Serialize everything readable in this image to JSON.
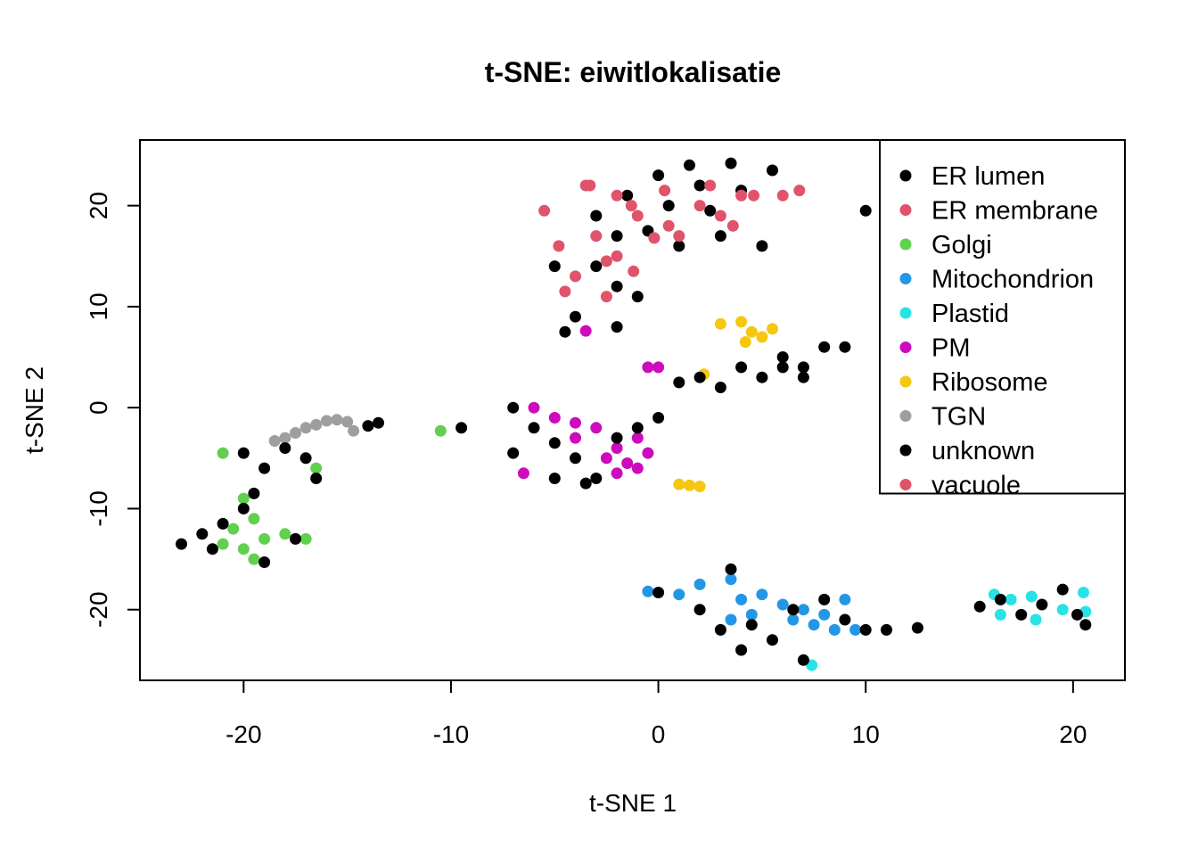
{
  "chart_data": {
    "type": "scatter",
    "title": "t-SNE: eiwitlokalisatie",
    "xlabel": "t-SNE 1",
    "ylabel": "t-SNE 2",
    "xlim": [
      -25,
      22.5
    ],
    "ylim": [
      -27,
      26.5
    ],
    "x_ticks": [
      -20,
      -10,
      0,
      10,
      20
    ],
    "y_ticks": [
      -20,
      -10,
      0,
      10,
      20
    ],
    "grid": false,
    "legend_position": "top-right",
    "legend": [
      {
        "name": "ER lumen",
        "color": "#000000"
      },
      {
        "name": "ER membrane",
        "color": "#DF536B"
      },
      {
        "name": "Golgi",
        "color": "#61D04F"
      },
      {
        "name": "Mitochondrion",
        "color": "#2297E6"
      },
      {
        "name": "Plastid",
        "color": "#28E2E5"
      },
      {
        "name": "PM",
        "color": "#CD0BBC"
      },
      {
        "name": "Ribosome",
        "color": "#F5C710"
      },
      {
        "name": "TGN",
        "color": "#9E9E9E"
      },
      {
        "name": "unknown",
        "color": "#000000"
      },
      {
        "name": "vacuole",
        "color": "#DF536B"
      }
    ],
    "series": [
      {
        "name": "ER lumen",
        "color": "#000000",
        "points": [
          [
            0,
            23
          ],
          [
            1.5,
            24
          ],
          [
            3.5,
            24.2
          ],
          [
            5.5,
            23.5
          ],
          [
            -1.5,
            21
          ],
          [
            2,
            22
          ],
          [
            4,
            21.5
          ],
          [
            -3,
            19
          ],
          [
            0.5,
            20
          ],
          [
            2.5,
            19.5
          ],
          [
            -2,
            17
          ],
          [
            -0.5,
            17.5
          ],
          [
            1,
            16
          ],
          [
            3,
            17
          ],
          [
            5,
            16
          ],
          [
            -5,
            14
          ],
          [
            -3,
            14
          ],
          [
            -2,
            12
          ],
          [
            -1,
            11
          ],
          [
            -4,
            9
          ],
          [
            -2,
            8
          ],
          [
            -4.5,
            7.5
          ],
          [
            6,
            5
          ],
          [
            8,
            6
          ],
          [
            5,
            3
          ],
          [
            7,
            4
          ],
          [
            9,
            6
          ],
          [
            10,
            19.5
          ]
        ]
      },
      {
        "name": "ER membrane",
        "color": "#DF536B",
        "points": [
          [
            -5.5,
            19.5
          ],
          [
            -3.5,
            22
          ],
          [
            -2,
            21
          ],
          [
            -1,
            19
          ],
          [
            0.5,
            18
          ],
          [
            2,
            20
          ],
          [
            4,
            21
          ],
          [
            6,
            21
          ],
          [
            -3,
            17
          ],
          [
            -2,
            15
          ],
          [
            -4,
            13
          ],
          [
            -2.5,
            11
          ],
          [
            1,
            17
          ],
          [
            3,
            19
          ]
        ]
      },
      {
        "name": "Golgi",
        "color": "#61D04F",
        "points": [
          [
            -21,
            -4.5
          ],
          [
            -20,
            -9
          ],
          [
            -19.5,
            -11
          ],
          [
            -20.5,
            -12
          ],
          [
            -19,
            -13
          ],
          [
            -20,
            -14
          ],
          [
            -21,
            -13.5
          ],
          [
            -19.5,
            -15
          ],
          [
            -18,
            -12.5
          ],
          [
            -17,
            -13
          ],
          [
            -16.5,
            -6
          ],
          [
            -10.5,
            -2.3
          ]
        ]
      },
      {
        "name": "Mitochondrion",
        "color": "#2297E6",
        "points": [
          [
            -0.5,
            -18.2
          ],
          [
            1,
            -18.5
          ],
          [
            2,
            -17.5
          ],
          [
            3.5,
            -17
          ],
          [
            4,
            -19
          ],
          [
            5,
            -18.5
          ],
          [
            6,
            -19.5
          ],
          [
            7,
            -20
          ],
          [
            6.5,
            -21
          ],
          [
            8,
            -20.5
          ],
          [
            9,
            -19
          ],
          [
            9.5,
            -22
          ],
          [
            3.5,
            -21
          ],
          [
            4.5,
            -20.5
          ],
          [
            7.5,
            -21.5
          ],
          [
            8.5,
            -22
          ]
        ]
      },
      {
        "name": "Plastid",
        "color": "#28E2E5",
        "points": [
          [
            16.2,
            -18.5
          ],
          [
            17,
            -19
          ],
          [
            18,
            -18.7
          ],
          [
            18.2,
            -21
          ],
          [
            19.5,
            -20
          ],
          [
            20.5,
            -18.3
          ],
          [
            20.6,
            -20.2
          ],
          [
            16.5,
            -20.5
          ],
          [
            7.4,
            -25.5
          ]
        ]
      },
      {
        "name": "PM",
        "color": "#CD0BBC",
        "points": [
          [
            -6,
            0
          ],
          [
            -5,
            -1
          ],
          [
            -4,
            -1.5
          ],
          [
            -3,
            -2
          ],
          [
            -2,
            -4
          ],
          [
            -1,
            -3
          ],
          [
            -2.5,
            -5
          ],
          [
            -1.5,
            -5.5
          ],
          [
            -0.5,
            -4.5
          ],
          [
            -2,
            -6.5
          ],
          [
            -1,
            -6
          ],
          [
            -3.5,
            7.6
          ],
          [
            -0.5,
            4
          ],
          [
            0,
            4
          ],
          [
            -6.5,
            -6.5
          ],
          [
            -4,
            -3
          ]
        ]
      },
      {
        "name": "Ribosome",
        "color": "#F5C710",
        "points": [
          [
            3,
            8.3
          ],
          [
            4,
            8.5
          ],
          [
            4.5,
            7.5
          ],
          [
            5,
            7
          ],
          [
            5.5,
            7.8
          ],
          [
            4.2,
            6.5
          ],
          [
            2.2,
            3.3
          ],
          [
            1,
            -7.6
          ],
          [
            1.5,
            -7.7
          ],
          [
            2,
            -7.8
          ]
        ]
      },
      {
        "name": "TGN",
        "color": "#9E9E9E",
        "points": [
          [
            -18.5,
            -3.3
          ],
          [
            -18,
            -3
          ],
          [
            -17.5,
            -2.5
          ],
          [
            -17,
            -2
          ],
          [
            -16.5,
            -1.7
          ],
          [
            -16,
            -1.3
          ],
          [
            -15.5,
            -1.2
          ],
          [
            -15,
            -1.4
          ],
          [
            -14.7,
            -2.3
          ]
        ]
      },
      {
        "name": "unknown",
        "color": "#000000",
        "points": [
          [
            -23,
            -13.5
          ],
          [
            -22,
            -12.5
          ],
          [
            -21,
            -11.5
          ],
          [
            -20,
            -10
          ],
          [
            -19.5,
            -8.5
          ],
          [
            -19,
            -6
          ],
          [
            -20,
            -4.5
          ],
          [
            -18,
            -4
          ],
          [
            -17,
            -5
          ],
          [
            -16.5,
            -7
          ],
          [
            -17.5,
            -13
          ],
          [
            -19,
            -15.3
          ],
          [
            -21.5,
            -14
          ],
          [
            -14,
            -1.8
          ],
          [
            -13.5,
            -1.5
          ],
          [
            -9.5,
            -2
          ],
          [
            -7,
            0
          ],
          [
            -6,
            -2
          ],
          [
            -5,
            -3.5
          ],
          [
            -4,
            -5
          ],
          [
            -3,
            -7
          ],
          [
            -2,
            -3
          ],
          [
            -1,
            -2
          ],
          [
            0,
            -1
          ],
          [
            1,
            2.5
          ],
          [
            2,
            3
          ],
          [
            3,
            2
          ],
          [
            4,
            4
          ],
          [
            6,
            4
          ],
          [
            7,
            3
          ],
          [
            -7,
            -4.5
          ],
          [
            -5,
            -7
          ],
          [
            -3.5,
            -7.5
          ],
          [
            2,
            -20
          ],
          [
            3,
            -22
          ],
          [
            4.5,
            -21.5
          ],
          [
            5.5,
            -23
          ],
          [
            6.5,
            -20
          ],
          [
            8,
            -19
          ],
          [
            9,
            -21
          ],
          [
            10,
            -22
          ],
          [
            11,
            -22
          ],
          [
            12.5,
            -21.8
          ],
          [
            15.5,
            -19.7
          ],
          [
            16.5,
            -19
          ],
          [
            17.5,
            -20.5
          ],
          [
            18.5,
            -19.5
          ],
          [
            19.5,
            -18
          ],
          [
            20.2,
            -20.5
          ],
          [
            20.6,
            -21.5
          ],
          [
            3.5,
            -16
          ],
          [
            0,
            -18.3
          ],
          [
            7,
            -25
          ],
          [
            4,
            -24
          ]
        ]
      },
      {
        "name": "vacuole",
        "color": "#DF536B",
        "points": [
          [
            -3.3,
            22
          ],
          [
            -1.3,
            20
          ],
          [
            0.3,
            21.5
          ],
          [
            2.5,
            22
          ],
          [
            4.6,
            21
          ],
          [
            6.8,
            21.5
          ],
          [
            -4.8,
            16
          ],
          [
            -2.5,
            14.5
          ],
          [
            -0.2,
            16.8
          ],
          [
            -4.5,
            11.5
          ],
          [
            -1.2,
            13.5
          ],
          [
            3.6,
            18
          ]
        ]
      }
    ]
  }
}
